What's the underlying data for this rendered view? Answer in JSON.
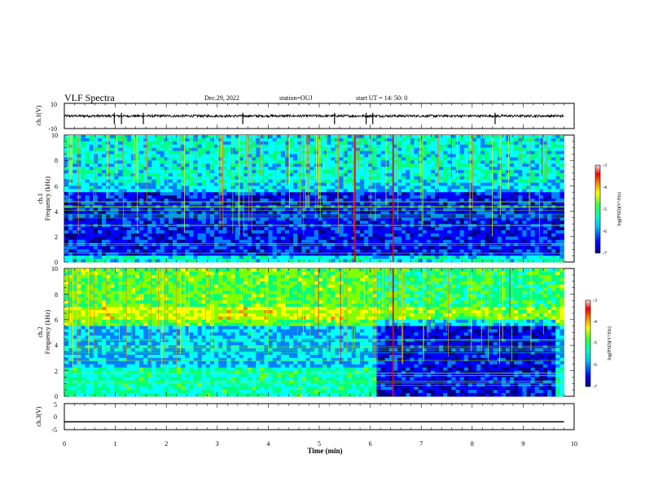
{
  "header": {
    "title": "VLF Spectra",
    "date": "Dec.29, 2022",
    "station": "station=OUJ",
    "start_ut": "start  UT =   14: 50: 0"
  },
  "chart_data": [
    {
      "type": "line",
      "name": "ch1-waveform",
      "ylabel": "ch.1(V)",
      "ylim": [
        -10,
        10
      ],
      "y_ticks": [
        "10",
        "-10"
      ],
      "baseline": 0,
      "spikes_min": [
        0.98,
        1.12,
        1.55,
        3.5,
        5.3,
        5.92,
        6.05,
        8.45
      ]
    },
    {
      "type": "heatmap",
      "name": "ch1-spectrogram",
      "ylabel": "ch.1\nFrequency  (kHz)",
      "ylim": [
        0,
        10
      ],
      "y_ticks": [
        "0",
        "2",
        "4",
        "6",
        "8",
        "10"
      ],
      "colorbar": {
        "label": "log(PSD)(V²/Hz)",
        "range": [
          -7,
          -3
        ],
        "ticks": [
          "-3",
          "-4",
          "-5",
          "-6",
          "-7"
        ]
      },
      "notable_events_min": [
        5.7,
        6.45
      ]
    },
    {
      "type": "heatmap",
      "name": "ch2-spectrogram",
      "ylabel": "ch.2\nFrequency  (kHz)",
      "ylim": [
        0,
        10
      ],
      "y_ticks": [
        "0",
        "2",
        "4",
        "6",
        "8",
        "10"
      ],
      "colorbar": {
        "label": "log(PSD)(V²/Hz)",
        "range": [
          -7,
          -3
        ],
        "ticks": [
          "-3",
          "-4",
          "-5",
          "-6",
          "-7"
        ]
      },
      "level_drop_min": 6.1,
      "notable_events_min": [
        6.45
      ]
    },
    {
      "type": "line",
      "name": "ch3-voltage",
      "ylabel": "ch.3(V)",
      "ylim": [
        -5,
        5
      ],
      "y_ticks": [
        "5",
        "0",
        "-5"
      ],
      "value": -2
    }
  ],
  "xaxis": {
    "label": "Time  (min)",
    "range": [
      0,
      10
    ],
    "ticks": [
      "0",
      "1",
      "2",
      "3",
      "4",
      "5",
      "6",
      "7",
      "8",
      "9",
      "10"
    ],
    "data_end_min": 9.8
  },
  "colormap": [
    "#000080",
    "#0000ff",
    "#0080ff",
    "#00ffff",
    "#00ff80",
    "#80ff00",
    "#ffff00",
    "#ff8000",
    "#ff0000",
    "#ffd0d0"
  ]
}
